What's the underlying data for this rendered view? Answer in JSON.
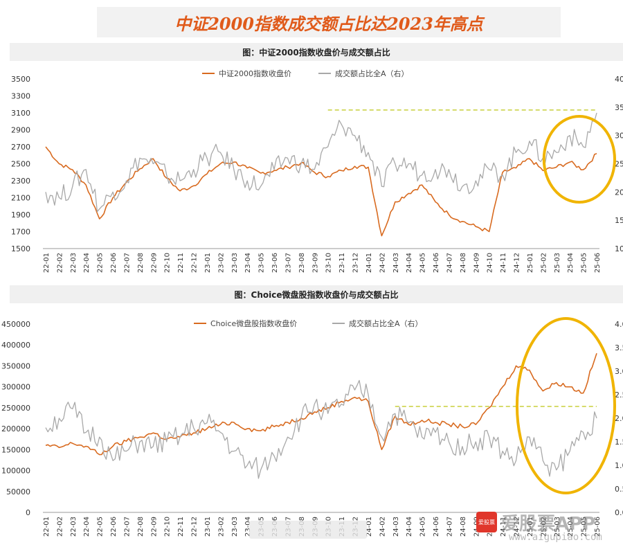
{
  "page": {
    "title": "中证2000指数成交额占比达2023年高点"
  },
  "colors": {
    "index_line": "#d86a1f",
    "share_line": "#a8a8a8",
    "threshold_line": "#c8cf3a",
    "highlight_circle": "#f0b400",
    "axis_text": "#333333"
  },
  "watermark": {
    "logo_text": "爱股票",
    "name": "爱股票APP",
    "url": "www.aigupiao.com"
  },
  "chart_data": [
    {
      "type": "line",
      "title": "图：中证2000指数收盘价与成交额占比",
      "legend": [
        "中证2000指数收盘价",
        "成交额占比全A（右）"
      ],
      "legend_position": "top-center",
      "ylim_left": [
        1500,
        3500
      ],
      "yticks_left": [
        "1500",
        "1700",
        "1900",
        "2100",
        "2300",
        "2500",
        "2700",
        "2900",
        "3100",
        "3300",
        "3500"
      ],
      "ylim_right": [
        10,
        40
      ],
      "yticks_right": [
        "10%",
        "15%",
        "20%",
        "25%",
        "30%",
        "35%",
        "40%"
      ],
      "x_ticks": [
        "22-01",
        "22-02",
        "22-03",
        "22-04",
        "22-05",
        "22-06",
        "22-07",
        "22-08",
        "22-09",
        "22-10",
        "22-11",
        "22-12",
        "23-01",
        "23-02",
        "23-03",
        "23-04",
        "23-05",
        "23-06",
        "23-07",
        "23-08",
        "23-09",
        "23-10",
        "23-11",
        "23-12",
        "24-01",
        "24-02",
        "24-03",
        "24-04",
        "24-05",
        "24-06",
        "24-07",
        "24-08",
        "24-09",
        "24-10",
        "24-11",
        "24-12",
        "25-01",
        "25-02",
        "25-03",
        "25-04",
        "25-05",
        "25-06"
      ],
      "series": [
        {
          "name": "中证2000指数收盘价",
          "axis": "left",
          "values": [
            2700,
            2500,
            2430,
            2250,
            1850,
            2100,
            2280,
            2440,
            2560,
            2330,
            2180,
            2240,
            2380,
            2500,
            2520,
            2450,
            2390,
            2420,
            2460,
            2510,
            2400,
            2350,
            2420,
            2470,
            2460,
            1650,
            2050,
            2150,
            2250,
            2050,
            1900,
            1820,
            1760,
            1700,
            2400,
            2450,
            2560,
            2420,
            2460,
            2520,
            2430,
            2620
          ]
        },
        {
          "name": "成交额占比全A（右）",
          "axis": "right",
          "values": [
            20,
            19,
            21,
            24,
            17,
            20,
            22,
            26,
            25,
            23,
            22,
            24,
            26,
            27,
            24,
            22,
            21,
            24,
            26,
            25,
            24,
            28,
            32,
            30,
            27,
            21,
            25,
            25,
            23,
            24,
            24,
            21,
            22,
            24,
            23,
            27,
            29,
            26,
            27,
            30,
            28,
            34
          ]
        }
      ],
      "reference_line": {
        "axis": "right",
        "value": 34.5,
        "start": "23-10"
      },
      "highlight_region": {
        "from": "25-03",
        "to": "25-06"
      }
    },
    {
      "type": "line",
      "title": "图：Choice微盘股指数收盘价与成交额占比",
      "legend": [
        "Choice微盘股指数收盘价",
        "成交额占比全A（右）"
      ],
      "legend_position": "top-center",
      "ylim_left": [
        0,
        450000
      ],
      "yticks_left": [
        "0",
        "50000",
        "100000",
        "150000",
        "200000",
        "250000",
        "300000",
        "350000",
        "400000",
        "450000"
      ],
      "ylim_right": [
        0,
        4.0
      ],
      "yticks_right": [
        "0.0%",
        "0.5%",
        "1.0%",
        "1.5%",
        "2.0%",
        "2.5%",
        "3.0%",
        "3.5%",
        "4.0%"
      ],
      "x_ticks": [
        "22-01",
        "22-02",
        "22-03",
        "22-04",
        "22-05",
        "22-06",
        "22-07",
        "22-08",
        "22-09",
        "22-10",
        "22-11",
        "22-12",
        "23-01",
        "23-02",
        "23-03",
        "23-04",
        "23-05",
        "23-06",
        "23-07",
        "23-08",
        "23-09",
        "23-10",
        "23-11",
        "23-12",
        "24-01",
        "24-02",
        "24-03",
        "24-04",
        "24-05",
        "24-06",
        "24-07",
        "24-08",
        "24-09",
        "24-10",
        "24-11",
        "24-12",
        "25-01",
        "25-02",
        "25-03",
        "25-04",
        "25-05",
        "25-06"
      ],
      "series": [
        {
          "name": "Choice微盘股指数收盘价",
          "axis": "left",
          "values": [
            160000,
            155000,
            165000,
            158000,
            138000,
            158000,
            170000,
            180000,
            190000,
            175000,
            180000,
            190000,
            200000,
            210000,
            215000,
            200000,
            195000,
            205000,
            215000,
            225000,
            240000,
            250000,
            265000,
            275000,
            265000,
            150000,
            230000,
            210000,
            220000,
            215000,
            210000,
            205000,
            210000,
            250000,
            300000,
            350000,
            340000,
            290000,
            310000,
            300000,
            285000,
            380000
          ]
        },
        {
          "name": "成交额占比全A（右）",
          "axis": "right",
          "values": [
            1.8,
            2.0,
            2.2,
            1.7,
            1.6,
            1.1,
            1.3,
            1.5,
            1.4,
            1.5,
            1.6,
            1.8,
            1.9,
            1.7,
            1.3,
            1.0,
            0.9,
            1.2,
            1.6,
            2.0,
            2.3,
            2.1,
            2.3,
            2.6,
            2.5,
            1.6,
            2.1,
            1.9,
            1.6,
            1.7,
            1.5,
            1.4,
            1.5,
            1.6,
            1.3,
            1.1,
            1.6,
            1.1,
            0.9,
            1.3,
            1.7,
            2.0
          ]
        }
      ],
      "reference_line": {
        "axis": "right",
        "value": 2.25,
        "start": "24-03"
      },
      "highlight_region": {
        "from": "25-01",
        "to": "25-06"
      }
    }
  ]
}
